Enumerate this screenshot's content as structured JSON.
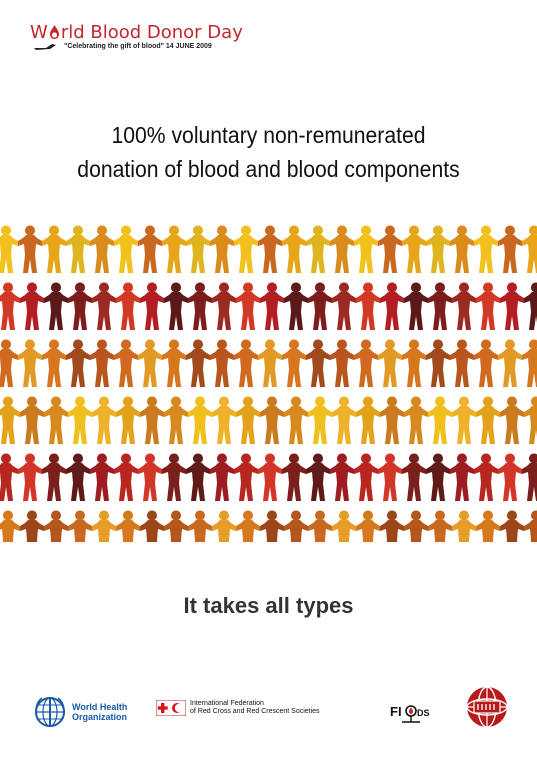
{
  "header": {
    "title_prefix": "W",
    "title_drop_letter": "o",
    "title_rest": "rld Blood Donor Day",
    "subtitle": "\"Celebrating the gift of blood\" 14 JUNE 2009",
    "color": "#c1272d"
  },
  "headline": {
    "line1": "100% voluntary non-remunerated",
    "line2": "donation of blood and blood components"
  },
  "people": {
    "rows": 6,
    "palettes": [
      [
        "#f2c11b",
        "#e9a51a",
        "#d98b1c",
        "#c7681e",
        "#e0b41f"
      ],
      [
        "#b21e23",
        "#7e1d1d",
        "#d33a26",
        "#5b1a18",
        "#9b2a22"
      ],
      [
        "#d6761e",
        "#b8561d",
        "#e39a25",
        "#a14a1b",
        "#cf6a20"
      ],
      [
        "#efc01c",
        "#e3a21a",
        "#d68a1d",
        "#f0b22a",
        "#c97a1f"
      ],
      [
        "#9e1d20",
        "#d23628",
        "#5f1a19",
        "#b8271f",
        "#7b1f1c"
      ],
      [
        "#d77a1f",
        "#b5561c",
        "#e79d27",
        "#9d461a",
        "#ca6a21"
      ]
    ]
  },
  "tagline": "It takes all types",
  "logos": {
    "who": {
      "line1": "World Health",
      "line2": "Organization",
      "icon": "who-emblem-icon"
    },
    "ifrc": {
      "line1": "International Federation",
      "line2": "of Red Cross and Red Crescent Societies",
      "icon": "red-cross-crescent-icon"
    },
    "fiods": {
      "text": "FI  DS",
      "icon": "fiods-logo-icon"
    },
    "isbt": {
      "icon": "isbt-globe-icon"
    }
  }
}
